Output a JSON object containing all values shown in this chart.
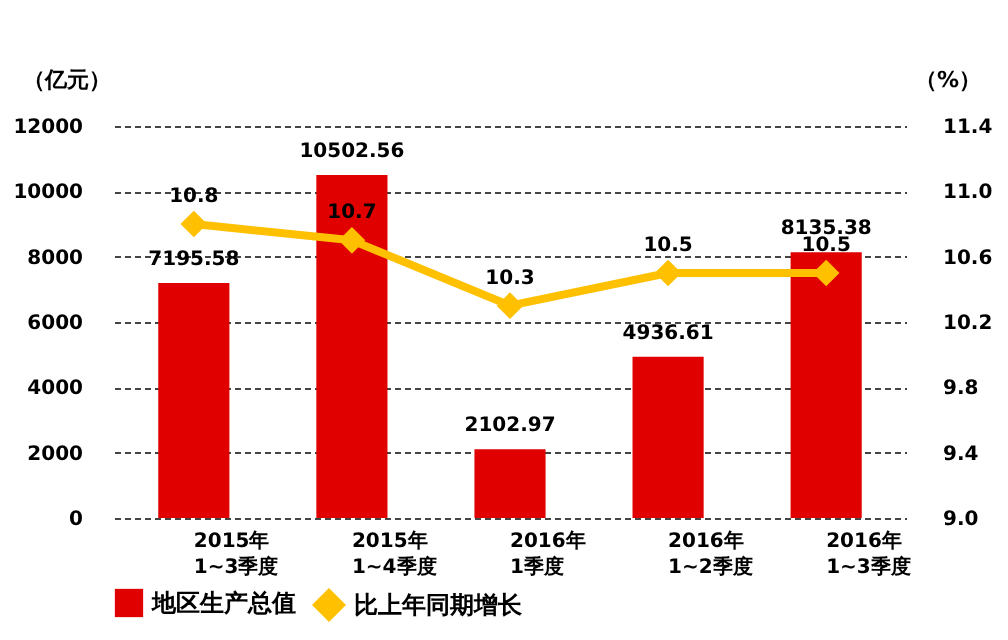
{
  "chart_data": {
    "type": "bar",
    "categories": [
      "2015年\n1~3季度",
      "2015年\n1~4季度",
      "2016年\n1季度",
      "2016年\n1~2季度",
      "2016年\n1~3季度"
    ],
    "ylabel": "（亿元）",
    "y2label": "（%）",
    "series": [
      {
        "name": "地区生产总值",
        "type": "bar",
        "color": "#e00000",
        "values": [
          7195.58,
          10502.56,
          2102.97,
          4936.61,
          8135.38
        ]
      },
      {
        "name": "比上年同期增长",
        "type": "line",
        "axis": "y2",
        "color": "#ffc000",
        "values": [
          10.8,
          10.7,
          10.3,
          10.5,
          10.5
        ]
      }
    ],
    "ylim": [
      0,
      12000
    ],
    "yticks": [
      0,
      2000,
      4000,
      6000,
      8000,
      10000,
      12000
    ],
    "y2lim": [
      9.0,
      11.4
    ],
    "y2ticks": [
      {
        "value": 9.0,
        "label": "9.0"
      },
      9.4,
      9.8,
      10.2,
      10.6,
      {
        "value": 11.0,
        "label": "11.0"
      },
      11.4
    ],
    "grid": "y",
    "data_labels": true,
    "legend": "bottom",
    "marker": "diamond",
    "line_style": "solid"
  }
}
